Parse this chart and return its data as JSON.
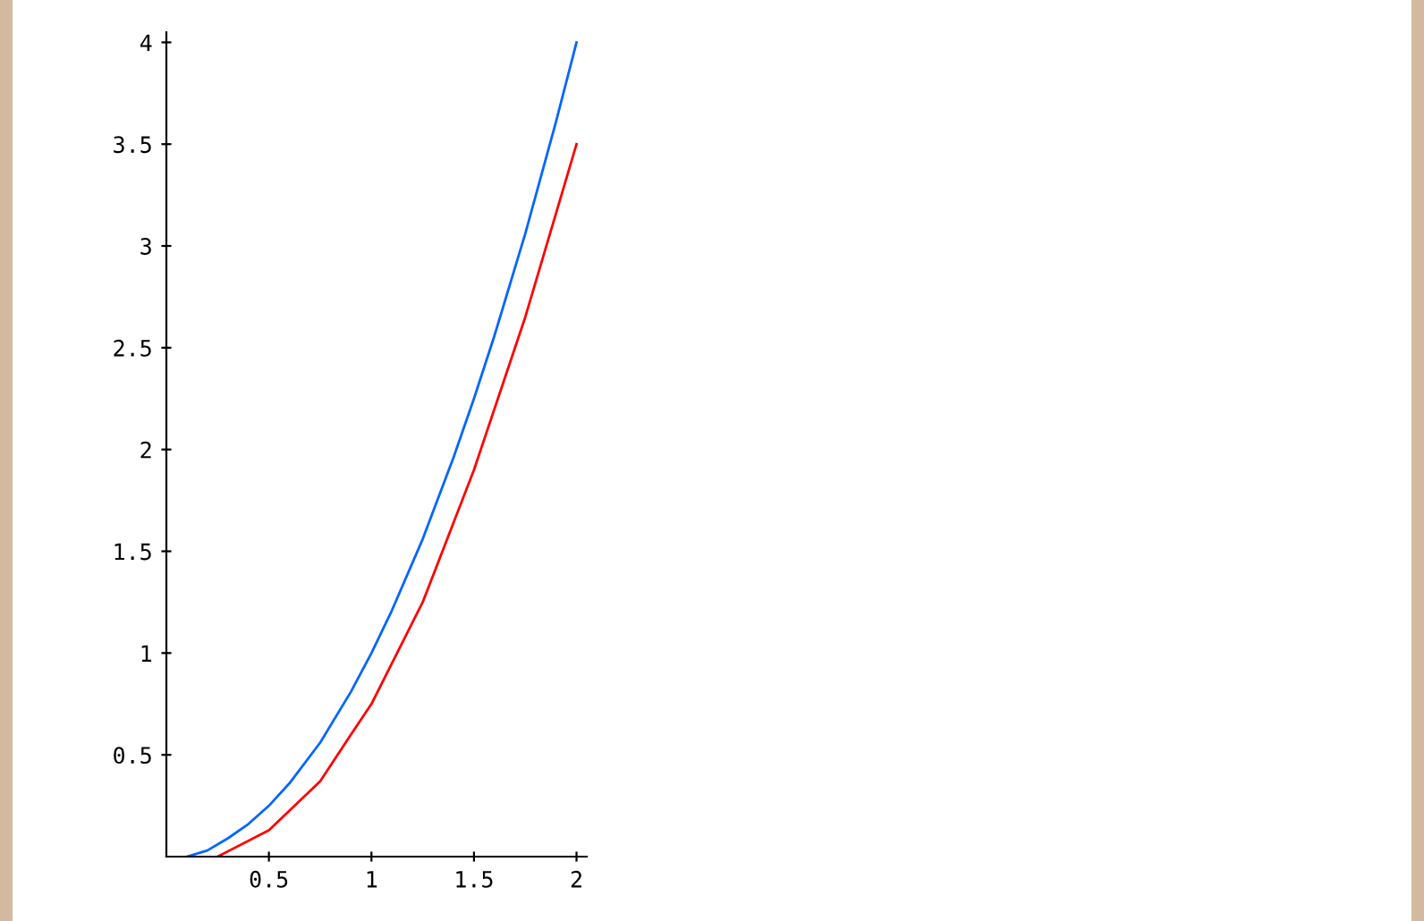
{
  "chart_data": {
    "type": "line",
    "series": [
      {
        "color": "#0066ff",
        "x": [
          0.1,
          0.2,
          0.3,
          0.4,
          0.5,
          0.6,
          0.75,
          0.9,
          1.0,
          1.1,
          1.25,
          1.4,
          1.5,
          1.6,
          1.75,
          1.9,
          2.0
        ],
        "values": [
          0,
          0.03,
          0.09,
          0.16,
          0.25,
          0.36,
          0.56,
          0.81,
          1.0,
          1.21,
          1.56,
          1.96,
          2.25,
          2.56,
          3.06,
          3.61,
          4.0
        ]
      },
      {
        "color": "#ff0000",
        "x": [
          0.25,
          0.5,
          0.75,
          0.9,
          1.0,
          1.25,
          1.5,
          1.75,
          2.0
        ],
        "values": [
          0,
          0.13,
          0.37,
          0.6,
          0.75,
          1.25,
          1.9,
          2.65,
          3.5
        ]
      }
    ],
    "xlim": [
      0,
      2.05
    ],
    "ylim": [
      0,
      4.05
    ],
    "xticks": [
      0.5,
      1,
      1.5,
      2
    ],
    "yticks": [
      0.5,
      1,
      1.5,
      2,
      2.5,
      3,
      3.5,
      4
    ],
    "grid": false,
    "legend": false
  }
}
